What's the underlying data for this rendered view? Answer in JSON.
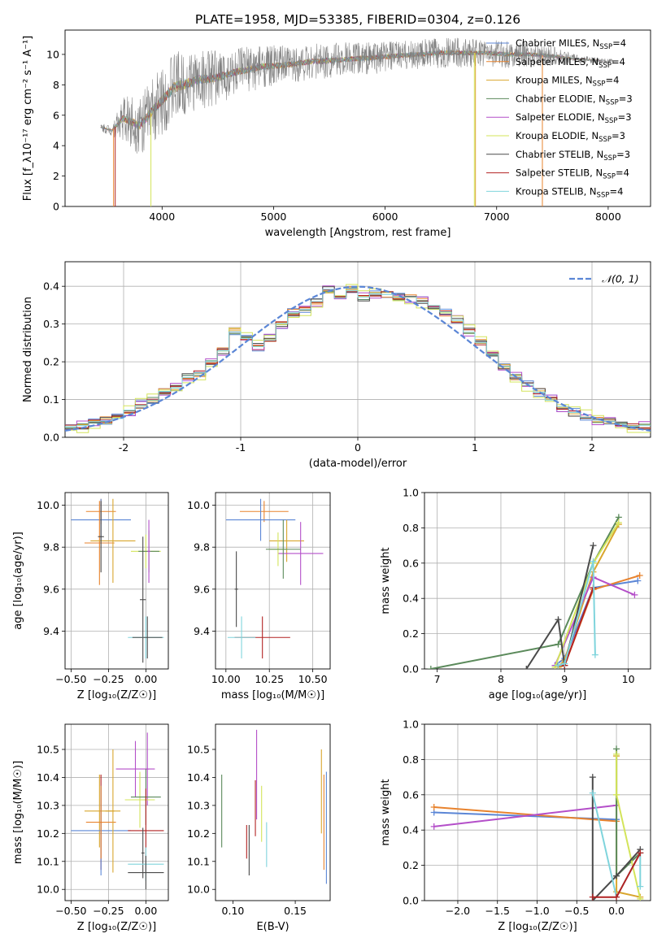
{
  "figure_title": "PLATE=1958, MJD=53385, FIBERID=0304, z=0.126",
  "colors": {
    "Chabrier MILES": "#5b86d6",
    "Salpeter MILES": "#e8832e",
    "Kroupa MILES": "#d9a62e",
    "Chabrier ELODIE": "#5b8a5b",
    "Salpeter ELODIE": "#b44fc9",
    "Kroupa ELODIE": "#d3e45a",
    "Chabrier STELIB": "#4a4a4a",
    "Salpeter STELIB": "#b22222",
    "Kroupa STELIB": "#7fd4dc",
    "normal": "#5b86d6",
    "grid": "#b0b0b0"
  },
  "chart_data": [
    {
      "id": "spectrum",
      "type": "line",
      "xlabel": "wavelength [Angstrom, rest frame]",
      "ylabel": "Flux [f_λ10⁻¹⁷ erg cm⁻² s⁻¹ A⁻¹]",
      "xlim": [
        3130,
        8380
      ],
      "ylim": [
        0,
        11.6
      ],
      "xticks": [
        4000,
        5000,
        6000,
        7000,
        8000
      ],
      "yticks": [
        0,
        2,
        4,
        6,
        8,
        10
      ],
      "grid": false,
      "legend_position": "top-right",
      "legend": [
        {
          "name": "Chabrier MILES, N",
          "sub": "SSP",
          "suffix": "=4"
        },
        {
          "name": "Salpeter MILES, N",
          "sub": "SSP",
          "suffix": "=4"
        },
        {
          "name": "Kroupa MILES, N",
          "sub": "SSP",
          "suffix": "=4"
        },
        {
          "name": "Chabrier ELODIE, N",
          "sub": "SSP",
          "suffix": "=3"
        },
        {
          "name": "Salpeter ELODIE, N",
          "sub": "SSP",
          "suffix": "=3"
        },
        {
          "name": "Kroupa ELODIE, N",
          "sub": "SSP",
          "suffix": "=3"
        },
        {
          "name": "Chabrier STELIB, N",
          "sub": "SSP",
          "suffix": "=3"
        },
        {
          "name": "Salpeter STELIB, N",
          "sub": "SSP",
          "suffix": "=4"
        },
        {
          "name": "Kroupa STELIB, N",
          "sub": "SSP",
          "suffix": "=4"
        }
      ],
      "data_envelope": {
        "x": [
          3450,
          3550,
          3650,
          3800,
          3950,
          4100,
          4300,
          4500,
          4700,
          4900,
          5100,
          5300,
          5500,
          5700,
          5900,
          6100,
          6300,
          6500,
          6700,
          6900,
          7100,
          7300,
          7500,
          7700,
          7900,
          8000
        ],
        "y": [
          5.2,
          5.0,
          5.8,
          5.3,
          6.6,
          7.8,
          8.3,
          8.5,
          8.9,
          9.2,
          9.3,
          9.5,
          9.6,
          9.7,
          9.8,
          9.9,
          10.0,
          10.1,
          10.1,
          10.1,
          10.0,
          10.0,
          9.9,
          9.7,
          9.6,
          9.5
        ],
        "noise": [
          0.3,
          0.4,
          1.5,
          2.0,
          2.2,
          2.4,
          2.0,
          1.8,
          1.6,
          1.4,
          1.3,
          1.2,
          1.2,
          1.1,
          1.1,
          1.0,
          1.0,
          1.0,
          1.0,
          0.9,
          0.9,
          0.8,
          0.7,
          0.3,
          0.2,
          0.2
        ]
      },
      "dropouts": [
        {
          "x": 3565,
          "color": "Salpeter MILES"
        },
        {
          "x": 3580,
          "color": "Salpeter STELIB"
        },
        {
          "x": 3900,
          "color": "Kroupa ELODIE"
        },
        {
          "x": 6800,
          "color": "Kroupa ELODIE"
        },
        {
          "x": 6810,
          "color": "Kroupa MILES"
        },
        {
          "x": 7410,
          "color": "Salpeter MILES"
        }
      ]
    },
    {
      "id": "residuals",
      "type": "bar",
      "xlabel": "(data-model)/error",
      "ylabel": "Normed distribution",
      "xlim": [
        -2.5,
        2.5
      ],
      "ylim": [
        0,
        0.465
      ],
      "xticks": [
        -2,
        -1,
        0,
        1,
        2
      ],
      "yticks": [
        0.0,
        0.1,
        0.2,
        0.3,
        0.4
      ],
      "grid": true,
      "legend_position": "top-right",
      "legend": [
        {
          "name": "𝒩(0, 1)"
        }
      ],
      "bin_edges": [
        -2.5,
        -2.4,
        -2.3,
        -2.2,
        -2.1,
        -2.0,
        -1.9,
        -1.8,
        -1.7,
        -1.6,
        -1.5,
        -1.4,
        -1.3,
        -1.2,
        -1.1,
        -1.0,
        -0.9,
        -0.8,
        -0.7,
        -0.6,
        -0.5,
        -0.4,
        -0.3,
        -0.2,
        -0.1,
        0.0,
        0.1,
        0.2,
        0.3,
        0.4,
        0.5,
        0.6,
        0.7,
        0.8,
        0.9,
        1.0,
        1.1,
        1.2,
        1.3,
        1.4,
        1.5,
        1.6,
        1.7,
        1.8,
        1.9,
        2.0,
        2.1,
        2.2,
        2.3,
        2.4,
        2.5
      ],
      "hist_mean": [
        0.03,
        0.03,
        0.04,
        0.045,
        0.05,
        0.07,
        0.085,
        0.1,
        0.12,
        0.13,
        0.16,
        0.17,
        0.2,
        0.23,
        0.28,
        0.26,
        0.24,
        0.26,
        0.3,
        0.33,
        0.34,
        0.36,
        0.39,
        0.37,
        0.39,
        0.37,
        0.38,
        0.38,
        0.37,
        0.37,
        0.36,
        0.35,
        0.33,
        0.31,
        0.28,
        0.25,
        0.22,
        0.19,
        0.16,
        0.14,
        0.12,
        0.1,
        0.08,
        0.065,
        0.055,
        0.045,
        0.04,
        0.035,
        0.03,
        0.03
      ],
      "series_offsets": [
        -0.012,
        0.009,
        0.004,
        -0.006,
        0.013,
        0.018,
        -0.009,
        0.006,
        0.002
      ],
      "series": [
        "Chabrier MILES",
        "Salpeter MILES",
        "Kroupa MILES",
        "Chabrier ELODIE",
        "Salpeter ELODIE",
        "Kroupa ELODIE",
        "Chabrier STELIB",
        "Salpeter STELIB",
        "Kroupa STELIB"
      ]
    },
    {
      "id": "age_vs_Z",
      "type": "scatter",
      "xlabel": "Z [log₁₀(Z/Z☉)]",
      "ylabel": "age  [log₁₀(age/yr)]",
      "xlim": [
        -0.54,
        0.15
      ],
      "ylim": [
        9.22,
        10.06
      ],
      "xticks": [
        -0.5,
        -0.25,
        0.0
      ],
      "xticklabels": [
        "−0.50",
        "−0.25",
        "0.00"
      ],
      "yticks": [
        9.4,
        9.6,
        9.8,
        10.0
      ],
      "grid": true,
      "points": [
        {
          "x": -0.3,
          "xerr": 0.1,
          "y": 9.97,
          "yerr": 0.06,
          "c": "Salpeter MILES"
        },
        {
          "x": -0.3,
          "xerr": 0.2,
          "y": 9.93,
          "yerr": 0.1,
          "c": "Chabrier MILES"
        },
        {
          "x": -0.31,
          "xerr": 0.1,
          "y": 9.82,
          "yerr": 0.2,
          "c": "Salpeter MILES"
        },
        {
          "x": -0.22,
          "xerr": 0.15,
          "y": 9.83,
          "yerr": 0.2,
          "c": "Kroupa MILES"
        },
        {
          "x": -0.3,
          "xerr": 0.02,
          "y": 9.85,
          "yerr": 0.17,
          "c": "Chabrier STELIB"
        },
        {
          "x": 0.0,
          "xerr": 0.1,
          "y": 9.78,
          "yerr": 0.08,
          "c": "Kroupa ELODIE"
        },
        {
          "x": 0.02,
          "xerr": 0.07,
          "y": 9.78,
          "yerr": 0.1,
          "c": "Chabrier ELODIE"
        },
        {
          "x": 0.02,
          "xerr": 0.01,
          "y": 9.78,
          "yerr": 0.15,
          "c": "Salpeter ELODIE"
        },
        {
          "x": -0.02,
          "xerr": 0.02,
          "y": 9.55,
          "yerr": 0.3,
          "c": "Chabrier STELIB"
        },
        {
          "x": 0.0,
          "xerr": 0.12,
          "y": 9.37,
          "yerr": 0.1,
          "c": "Kroupa STELIB"
        },
        {
          "x": 0.01,
          "xerr": 0.1,
          "y": 9.37,
          "yerr": 0.1,
          "c": "Chabrier STELIB"
        }
      ]
    },
    {
      "id": "age_vs_mass",
      "type": "scatter",
      "xlabel": "mass [log₁₀(M/M☉)]",
      "ylabel": "",
      "xlim": [
        9.94,
        10.6
      ],
      "ylim": [
        9.22,
        10.06
      ],
      "xticks": [
        10.0,
        10.25,
        10.5
      ],
      "xticklabels": [
        "10.00",
        "10.25",
        "10.50"
      ],
      "yticks": [
        9.4,
        9.6,
        9.8,
        10.0
      ],
      "grid": true,
      "points": [
        {
          "x": 10.22,
          "xerr": 0.14,
          "y": 9.97,
          "yerr": 0.05,
          "c": "Salpeter MILES"
        },
        {
          "x": 10.2,
          "xerr": 0.2,
          "y": 9.93,
          "yerr": 0.1,
          "c": "Chabrier MILES"
        },
        {
          "x": 10.35,
          "xerr": 0.1,
          "y": 9.83,
          "yerr": 0.1,
          "c": "Kroupa MILES"
        },
        {
          "x": 10.43,
          "xerr": 0.13,
          "y": 9.77,
          "yerr": 0.15,
          "c": "Salpeter ELODIE"
        },
        {
          "x": 10.3,
          "xerr": 0.05,
          "y": 9.79,
          "yerr": 0.08,
          "c": "Kroupa ELODIE"
        },
        {
          "x": 10.33,
          "xerr": 0.1,
          "y": 9.79,
          "yerr": 0.14,
          "c": "Chabrier ELODIE"
        },
        {
          "x": 10.06,
          "xerr": 0.01,
          "y": 9.6,
          "yerr": 0.18,
          "c": "Chabrier STELIB"
        },
        {
          "x": 10.21,
          "xerr": 0.16,
          "y": 9.37,
          "yerr": 0.1,
          "c": "Salpeter STELIB"
        },
        {
          "x": 10.09,
          "xerr": 0.08,
          "y": 9.37,
          "yerr": 0.1,
          "c": "Kroupa STELIB"
        }
      ]
    },
    {
      "id": "mass_weight_vs_age",
      "type": "line",
      "xlabel": "age  [log₁₀(age/yr)]",
      "ylabel": "mass weight",
      "xlim": [
        6.8,
        10.35
      ],
      "ylim": [
        0,
        1.0
      ],
      "xticks": [
        7,
        8,
        9,
        10
      ],
      "yticks": [
        0.0,
        0.2,
        0.4,
        0.6,
        0.8,
        1.0
      ],
      "grid": true,
      "series": [
        {
          "c": "Chabrier MILES",
          "x": [
            8.85,
            9.0,
            9.45,
            10.15
          ],
          "y": [
            0.02,
            0.06,
            0.46,
            0.5
          ]
        },
        {
          "c": "Salpeter MILES",
          "x": [
            8.9,
            9.0,
            9.45,
            10.18
          ],
          "y": [
            0.01,
            0.02,
            0.45,
            0.53
          ]
        },
        {
          "c": "Kroupa MILES",
          "x": [
            8.9,
            9.0,
            9.45,
            9.85
          ],
          "y": [
            0.01,
            0.05,
            0.55,
            0.82
          ]
        },
        {
          "c": "Chabrier ELODIE",
          "x": [
            6.9,
            8.9,
            9.45,
            9.85
          ],
          "y": [
            0.0,
            0.14,
            0.6,
            0.86
          ]
        },
        {
          "c": "Salpeter ELODIE",
          "x": [
            8.85,
            9.45,
            10.1
          ],
          "y": [
            0.02,
            0.52,
            0.42
          ]
        },
        {
          "c": "Kroupa ELODIE",
          "x": [
            8.85,
            9.45,
            9.85
          ],
          "y": [
            0.01,
            0.6,
            0.83
          ]
        },
        {
          "c": "Chabrier STELIB",
          "x": [
            8.4,
            8.9,
            9.0,
            9.45
          ],
          "y": [
            0.0,
            0.28,
            0.02,
            0.7
          ]
        },
        {
          "c": "Salpeter STELIB",
          "x": [
            8.9,
            9.0,
            9.45
          ],
          "y": [
            0.02,
            0.02,
            0.46
          ]
        },
        {
          "c": "Kroupa STELIB",
          "x": [
            8.9,
            9.0,
            9.45,
            9.48
          ],
          "y": [
            0.02,
            0.03,
            0.61,
            0.08
          ]
        }
      ]
    },
    {
      "id": "mass_vs_Z",
      "type": "scatter",
      "xlabel": "Z [log₁₀(Z/Z☉)]",
      "ylabel": "mass [log₁₀(M/M☉)]",
      "xlim": [
        -0.54,
        0.15
      ],
      "ylim": [
        9.96,
        10.59
      ],
      "xticks": [
        -0.5,
        -0.25,
        0.0
      ],
      "xticklabels": [
        "−0.50",
        "−0.25",
        "0.00"
      ],
      "yticks": [
        10.0,
        10.1,
        10.2,
        10.3,
        10.4,
        10.5
      ],
      "grid": true,
      "points": [
        {
          "x": -0.3,
          "xerr": 0.01,
          "y": 10.24,
          "yerr": 0.17,
          "c": "Salpeter STELIB"
        },
        {
          "x": -0.31,
          "xerr": 0.1,
          "y": 10.28,
          "yerr": 0.13,
          "c": "Kroupa MILES"
        },
        {
          "x": -0.3,
          "xerr": 0.2,
          "y": 10.21,
          "yerr": 0.16,
          "c": "Chabrier MILES"
        },
        {
          "x": -0.3,
          "xerr": 0.1,
          "y": 10.24,
          "yerr": 0.13,
          "c": "Salpeter MILES"
        },
        {
          "x": -0.22,
          "xerr": 0.05,
          "y": 10.28,
          "yerr": 0.22,
          "c": "Kroupa MILES"
        },
        {
          "x": -0.07,
          "xerr": 0.13,
          "y": 10.43,
          "yerr": 0.1,
          "c": "Salpeter ELODIE"
        },
        {
          "x": 0.01,
          "xerr": 0.01,
          "y": 10.43,
          "yerr": 0.13,
          "c": "Salpeter ELODIE"
        },
        {
          "x": -0.04,
          "xerr": 0.1,
          "y": 10.32,
          "yerr": 0.1,
          "c": "Kroupa ELODIE"
        },
        {
          "x": 0.0,
          "xerr": 0.1,
          "y": 10.33,
          "yerr": 0.1,
          "c": "Chabrier ELODIE"
        },
        {
          "x": 0.0,
          "xerr": 0.12,
          "y": 10.21,
          "yerr": 0.15,
          "c": "Salpeter STELIB"
        },
        {
          "x": -0.02,
          "xerr": 0.01,
          "y": 10.13,
          "yerr": 0.09,
          "c": "Chabrier STELIB"
        },
        {
          "x": 0.0,
          "xerr": 0.12,
          "y": 10.09,
          "yerr": 0.06,
          "c": "Kroupa STELIB"
        },
        {
          "x": 0.0,
          "xerr": 0.12,
          "y": 10.06,
          "yerr": 0.06,
          "c": "Chabrier STELIB"
        }
      ]
    },
    {
      "id": "mass_vs_EBV",
      "type": "scatter",
      "xlabel": "E(B-V)",
      "ylabel": "",
      "xlim": [
        0.086,
        0.178
      ],
      "ylim": [
        9.96,
        10.59
      ],
      "xticks": [
        0.1,
        0.15
      ],
      "xticklabels": [
        "0.10",
        "0.15"
      ],
      "yticks": [
        10.0,
        10.1,
        10.2,
        10.3,
        10.4,
        10.5
      ],
      "grid": false,
      "points": [
        {
          "x": 0.091,
          "y": 10.28,
          "yerr": 0.13,
          "c": "Chabrier ELODIE"
        },
        {
          "x": 0.111,
          "y": 10.17,
          "yerr": 0.06,
          "c": "Salpeter STELIB"
        },
        {
          "x": 0.113,
          "y": 10.14,
          "yerr": 0.09,
          "c": "Chabrier STELIB"
        },
        {
          "x": 0.119,
          "y": 10.41,
          "yerr": 0.16,
          "c": "Salpeter ELODIE"
        },
        {
          "x": 0.118,
          "y": 10.29,
          "yerr": 0.1,
          "c": "Salpeter STELIB"
        },
        {
          "x": 0.123,
          "y": 10.27,
          "yerr": 0.1,
          "c": "Kroupa ELODIE"
        },
        {
          "x": 0.127,
          "y": 10.16,
          "yerr": 0.08,
          "c": "Kroupa STELIB"
        },
        {
          "x": 0.171,
          "y": 10.35,
          "yerr": 0.15,
          "c": "Kroupa MILES"
        },
        {
          "x": 0.173,
          "y": 10.24,
          "yerr": 0.17,
          "c": "Salpeter MILES"
        },
        {
          "x": 0.175,
          "y": 10.22,
          "yerr": 0.2,
          "c": "Chabrier MILES"
        }
      ]
    },
    {
      "id": "mass_weight_vs_Z",
      "type": "line",
      "xlabel": "Z [log₁₀(Z/Z☉)]",
      "ylabel": "mass weight",
      "xlim": [
        -2.42,
        0.43
      ],
      "ylim": [
        0,
        1.0
      ],
      "xticks": [
        -2.0,
        -1.5,
        -1.0,
        -0.5,
        0.0
      ],
      "xticklabels": [
        "−2.0",
        "−1.5",
        "−1.0",
        "−0.5",
        "0.0"
      ],
      "yticks": [
        0.0,
        0.2,
        0.4,
        0.6,
        0.8,
        1.0
      ],
      "grid": true,
      "series": [
        {
          "c": "Chabrier MILES",
          "x": [
            -2.3,
            0.0
          ],
          "y": [
            0.5,
            0.46
          ]
        },
        {
          "c": "Salpeter MILES",
          "x": [
            -2.3,
            0.0
          ],
          "y": [
            0.53,
            0.45
          ]
        },
        {
          "c": "Salpeter ELODIE",
          "x": [
            -2.3,
            0.0
          ],
          "y": [
            0.42,
            0.54
          ]
        },
        {
          "c": "Kroupa MILES",
          "x": [
            0.0,
            0.0,
            0.3
          ],
          "y": [
            0.82,
            0.05,
            0.02
          ]
        },
        {
          "c": "Chabrier ELODIE",
          "x": [
            0.0,
            0.0,
            0.3
          ],
          "y": [
            0.86,
            0.14,
            0.27
          ]
        },
        {
          "c": "Kroupa ELODIE",
          "x": [
            0.0,
            0.0,
            0.3
          ],
          "y": [
            0.83,
            0.6,
            0.01
          ]
        },
        {
          "c": "Chabrier STELIB",
          "x": [
            -0.3,
            -0.3,
            0.0,
            0.3
          ],
          "y": [
            0.7,
            0.0,
            0.14,
            0.29
          ]
        },
        {
          "c": "Kroupa STELIB",
          "x": [
            -0.3,
            0.0,
            0.3,
            0.3
          ],
          "y": [
            0.61,
            0.02,
            0.27,
            0.08
          ]
        },
        {
          "c": "Salpeter STELIB",
          "x": [
            -0.3,
            0.0,
            0.3
          ],
          "y": [
            0.02,
            0.02,
            0.27
          ]
        }
      ]
    }
  ]
}
